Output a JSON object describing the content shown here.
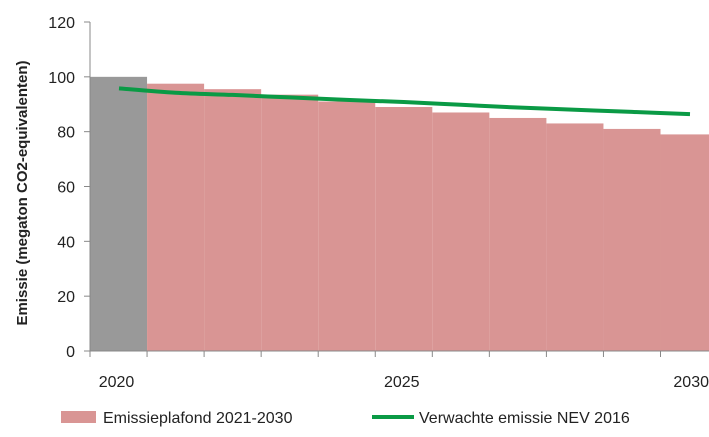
{
  "chart_data": {
    "type": "bar",
    "ylabel": "Emissie (megaton CO2-equivalenten)",
    "ylim": [
      0,
      120
    ],
    "yticks": [
      0,
      20,
      40,
      60,
      80,
      100,
      120
    ],
    "x_tick_labels": [
      {
        "year": 2020,
        "label": "2020"
      },
      {
        "year": 2025,
        "label": "2025"
      },
      {
        "year": 2030,
        "label": "2030"
      }
    ],
    "grid": false,
    "legend_position": "bottom",
    "bars": [
      {
        "year": 2020,
        "value": 100,
        "role": "base"
      },
      {
        "year": 2021,
        "value": 97.5,
        "role": "plafond"
      },
      {
        "year": 2022,
        "value": 95.5,
        "role": "plafond"
      },
      {
        "year": 2023,
        "value": 93.5,
        "role": "plafond"
      },
      {
        "year": 2024,
        "value": 91.0,
        "role": "plafond"
      },
      {
        "year": 2025,
        "value": 89.0,
        "role": "plafond"
      },
      {
        "year": 2026,
        "value": 87.0,
        "role": "plafond"
      },
      {
        "year": 2027,
        "value": 85.0,
        "role": "plafond"
      },
      {
        "year": 2028,
        "value": 83.0,
        "role": "plafond"
      },
      {
        "year": 2029,
        "value": 81.0,
        "role": "plafond"
      },
      {
        "year": 2030,
        "value": 79.0,
        "role": "plafond"
      }
    ],
    "series": [
      {
        "name": "Emissieplafond 2021-2030",
        "type": "bar",
        "color": "#d99594",
        "years": [
          2021,
          2022,
          2023,
          2024,
          2025,
          2026,
          2027,
          2028,
          2029,
          2030
        ],
        "values": [
          97.5,
          95.5,
          93.5,
          91.0,
          89.0,
          87.0,
          85.0,
          83.0,
          81.0,
          79.0
        ]
      },
      {
        "name": "Verwachte emissie NEV 2016",
        "type": "line",
        "color": "#0a9a45",
        "years": [
          2020,
          2021,
          2022,
          2023,
          2024,
          2025,
          2026,
          2027,
          2028,
          2029,
          2030
        ],
        "values": [
          95.8,
          94.2,
          93.4,
          92.5,
          91.6,
          90.8,
          89.8,
          88.8,
          88.0,
          87.2,
          86.4
        ]
      }
    ],
    "colors": {
      "base_bar": "#999999",
      "plafond_bar": "#d99594",
      "line": "#0a9a45",
      "axis": "#888888"
    }
  }
}
